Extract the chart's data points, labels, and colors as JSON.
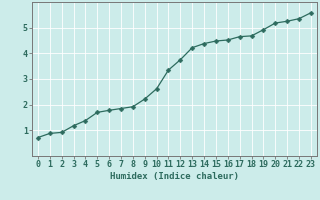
{
  "x": [
    0,
    1,
    2,
    3,
    4,
    5,
    6,
    7,
    8,
    9,
    10,
    11,
    12,
    13,
    14,
    15,
    16,
    17,
    18,
    19,
    20,
    21,
    22,
    23
  ],
  "y": [
    0.72,
    0.88,
    0.92,
    1.18,
    1.38,
    1.7,
    1.78,
    1.85,
    1.92,
    2.22,
    2.62,
    3.35,
    3.75,
    4.22,
    4.38,
    4.48,
    4.52,
    4.65,
    4.68,
    4.92,
    5.18,
    5.25,
    5.35,
    5.58
  ],
  "xlabel": "Humidex (Indice chaleur)",
  "bg_color": "#ccecea",
  "line_color": "#2d6b5e",
  "marker_color": "#2d6b5e",
  "grid_color": "#ffffff",
  "axis_color": "#777777",
  "text_color": "#2d6b5e",
  "xlim_min": -0.5,
  "xlim_max": 23.5,
  "ylim_min": 0,
  "ylim_max": 6,
  "yticks": [
    1,
    2,
    3,
    4,
    5
  ],
  "xticks": [
    0,
    1,
    2,
    3,
    4,
    5,
    6,
    7,
    8,
    9,
    10,
    11,
    12,
    13,
    14,
    15,
    16,
    17,
    18,
    19,
    20,
    21,
    22,
    23
  ],
  "xlabel_fontsize": 6.5,
  "tick_fontsize": 6.0,
  "line_width": 0.9,
  "marker_size": 2.5
}
